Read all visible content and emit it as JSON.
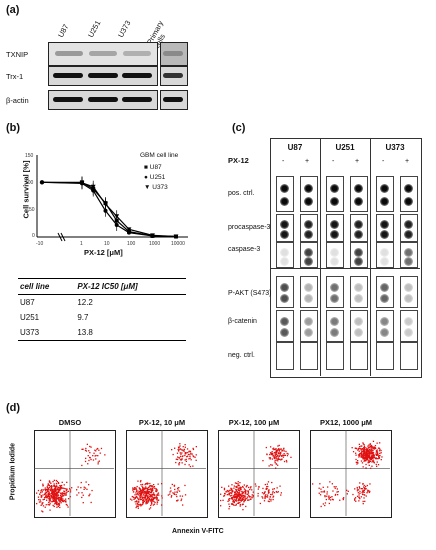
{
  "panel_labels": {
    "a": "(a)",
    "b": "(b)",
    "c": "(c)",
    "d": "(d)"
  },
  "western_blot": {
    "lanes": [
      "U87",
      "U251",
      "U373"
    ],
    "primary_lane": "Primary cells",
    "rows": [
      "TXNIP",
      "Trx-1",
      "β-actin"
    ]
  },
  "survival_plot": {
    "legend_title": "GBM cell line",
    "ylabel": "Cell survival [%]",
    "xlabel": "PX-12 [μM]",
    "x_ticks": [
      "-10",
      "1",
      "10",
      "100",
      "1000",
      "10000"
    ],
    "y_ticks": [
      "0",
      "50",
      "100",
      "150"
    ]
  },
  "ic50_table": {
    "headers": [
      "cell line",
      "PX-12 IC50 [μM]"
    ],
    "rows": [
      {
        "cell": "U87",
        "value": "12.2"
      },
      {
        "cell": "U251",
        "value": "9.7"
      },
      {
        "cell": "U373",
        "value": "13.8"
      }
    ]
  },
  "array": {
    "cell_lines": [
      "U87",
      "U251",
      "U373"
    ],
    "treatment_label": "PX-12",
    "minus": "-",
    "plus": "+",
    "rows": [
      "pos. ctrl.",
      "procaspase-3",
      "caspase-3",
      "P-AKT (S473)",
      "β-catenin",
      "neg. ctrl."
    ]
  },
  "facs": {
    "titles": [
      "DMSO",
      "PX-12, 10 μM",
      "PX-12, 100 μM",
      "PX12, 1000 μM"
    ],
    "xlabel": "Annexin V-FITC",
    "ylabel": "Propidium Iodide",
    "dot_color": "#e01010"
  },
  "chart_data": [
    {
      "type": "line",
      "title": "",
      "xlabel": "PX-12 [μM]",
      "ylabel": "Cell survival [%]",
      "x_scale": "log",
      "xlim": [
        0.1,
        10000
      ],
      "ylim": [
        0,
        150
      ],
      "series": [
        {
          "name": "U87",
          "x": [
            1,
            3,
            10,
            30,
            100,
            1000,
            10000
          ],
          "y": [
            100,
            88,
            62,
            30,
            10,
            2,
            1
          ]
        },
        {
          "name": "U251",
          "x": [
            1,
            3,
            10,
            30,
            100,
            1000,
            10000
          ],
          "y": [
            98,
            85,
            48,
            22,
            8,
            2,
            1
          ]
        },
        {
          "name": "U373",
          "x": [
            1,
            3,
            10,
            30,
            100,
            1000,
            10000
          ],
          "y": [
            99,
            92,
            60,
            38,
            14,
            3,
            1
          ]
        }
      ]
    }
  ]
}
